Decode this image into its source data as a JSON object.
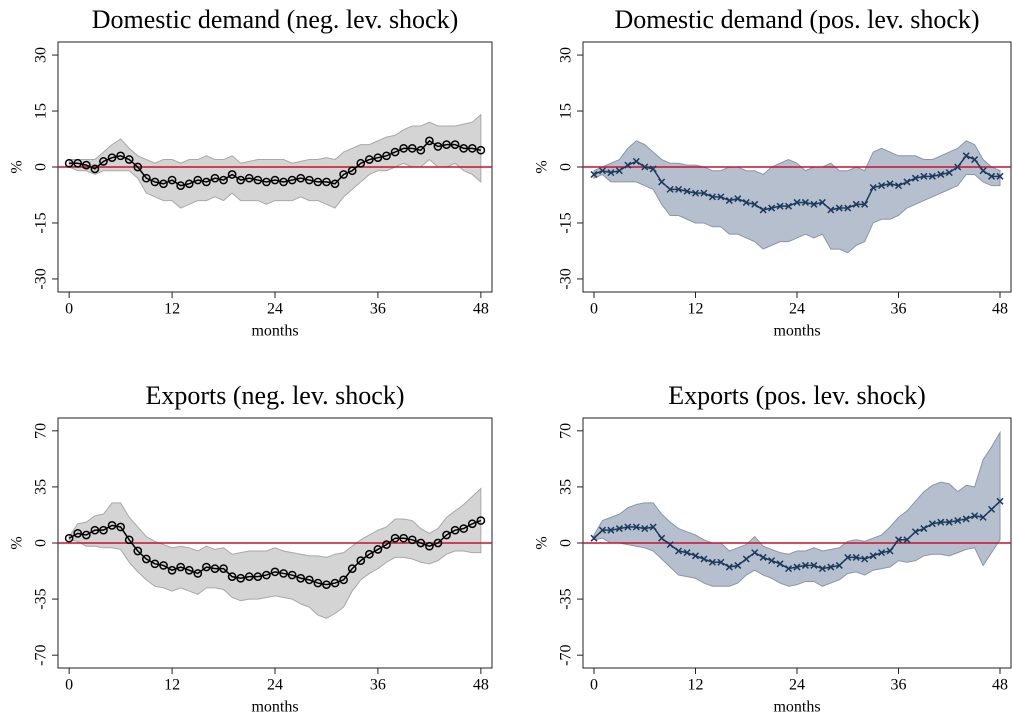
{
  "chart_data": [
    {
      "type": "line",
      "title": "Domestic demand (neg. lev. shock)",
      "xlabel": "months",
      "ylabel": "%",
      "x": [
        0,
        1,
        2,
        3,
        4,
        5,
        6,
        7,
        8,
        9,
        10,
        11,
        12,
        13,
        14,
        15,
        16,
        17,
        18,
        19,
        20,
        21,
        22,
        23,
        24,
        25,
        26,
        27,
        28,
        29,
        30,
        31,
        32,
        33,
        34,
        35,
        36,
        37,
        38,
        39,
        40,
        41,
        42,
        43,
        44,
        45,
        46,
        47,
        48
      ],
      "xlim": [
        -1.3,
        49.3
      ],
      "xticks": [
        0,
        12,
        24,
        36,
        48
      ],
      "ylim": [
        -33.5,
        33.5
      ],
      "yticks": [
        -30,
        -15,
        0,
        15,
        30
      ],
      "hline": 0,
      "hline_color": "#c8102e",
      "marker": "circle",
      "series": [
        {
          "color": "#000000",
          "values": [
            1,
            1,
            0.5,
            -0.5,
            1.5,
            2.5,
            3,
            2,
            0,
            -3,
            -4,
            -4.5,
            -3.5,
            -5,
            -4.5,
            -3.5,
            -4,
            -3,
            -3.5,
            -2,
            -3.5,
            -3,
            -3.5,
            -4,
            -3.5,
            -4,
            -3.5,
            -3,
            -3.5,
            -4,
            -4,
            -4.5,
            -2,
            -1,
            1,
            2,
            2.5,
            3,
            4,
            5,
            5,
            4.5,
            7,
            5.5,
            6,
            6,
            5,
            5,
            4.5
          ]
        }
      ],
      "band": {
        "color": "#d4d4d4",
        "edge": "#a8a8a8",
        "upper": [
          2,
          2,
          2,
          2,
          4,
          6,
          7.5,
          5,
          3,
          2,
          1,
          2,
          2,
          1,
          2,
          2,
          3,
          2,
          2,
          3,
          1,
          1.5,
          2,
          2,
          2,
          2,
          1,
          1.5,
          2,
          2,
          2.5,
          2,
          4,
          5,
          6,
          6,
          7,
          8,
          8.5,
          10,
          11,
          11,
          12,
          11,
          11,
          11,
          11.5,
          12,
          14
        ],
        "lower": [
          0,
          -1,
          -1,
          -2,
          -1,
          -1,
          -1,
          -1,
          -3,
          -7,
          -8,
          -9,
          -9,
          -11,
          -10,
          -9,
          -9,
          -8,
          -9,
          -7,
          -9,
          -9,
          -9,
          -10,
          -9,
          -9,
          -9,
          -8,
          -9,
          -9,
          -10,
          -11,
          -8,
          -6,
          -4,
          -2,
          -1,
          -1,
          0,
          1,
          0,
          0,
          2,
          0,
          0,
          1,
          -1,
          -2,
          -4
        ]
      }
    },
    {
      "type": "line",
      "title": "Domestic demand (pos. lev. shock)",
      "xlabel": "months",
      "ylabel": "%",
      "x": [
        0,
        1,
        2,
        3,
        4,
        5,
        6,
        7,
        8,
        9,
        10,
        11,
        12,
        13,
        14,
        15,
        16,
        17,
        18,
        19,
        20,
        21,
        22,
        23,
        24,
        25,
        26,
        27,
        28,
        29,
        30,
        31,
        32,
        33,
        34,
        35,
        36,
        37,
        38,
        39,
        40,
        41,
        42,
        43,
        44,
        45,
        46,
        47,
        48
      ],
      "xlim": [
        -1.3,
        49.3
      ],
      "xticks": [
        0,
        12,
        24,
        36,
        48
      ],
      "ylim": [
        -33.5,
        33.5
      ],
      "yticks": [
        -30,
        -15,
        0,
        15,
        30
      ],
      "hline": 0,
      "hline_color": "#c8102e",
      "marker": "x",
      "series": [
        {
          "color": "#1b3a5e",
          "values": [
            -2,
            -1,
            -1.5,
            -1,
            0.5,
            1.5,
            0,
            -0.5,
            -4,
            -6,
            -6,
            -6.5,
            -7,
            -7,
            -8,
            -8,
            -9,
            -8.5,
            -9.5,
            -10,
            -11.5,
            -11,
            -10.5,
            -10.5,
            -9.5,
            -9.5,
            -10,
            -9.5,
            -11.5,
            -11,
            -11,
            -10,
            -10,
            -5.5,
            -5,
            -4.5,
            -5,
            -4,
            -3,
            -2.5,
            -2.5,
            -2,
            -1.5,
            0,
            3,
            2,
            -1,
            -2.5,
            -2.5
          ]
        }
      ],
      "band": {
        "color": "#b6bfce",
        "edge": "#8896ab",
        "upper": [
          -1,
          0,
          1,
          2,
          5,
          7,
          6,
          4,
          2,
          1,
          1,
          0.5,
          0.5,
          0,
          -1,
          -1,
          0,
          0,
          -1,
          -1,
          -2,
          0,
          1,
          2,
          1,
          -1,
          0,
          0,
          1,
          -1,
          -1,
          0,
          -1,
          4,
          5,
          4,
          3,
          3,
          3,
          2,
          2,
          3,
          4,
          5,
          7,
          6,
          2,
          0,
          -1
        ],
        "lower": [
          -3,
          -2,
          -4,
          -4,
          -4,
          -4,
          -5,
          -6,
          -10,
          -13,
          -13,
          -14,
          -15,
          -15,
          -16,
          -16,
          -18,
          -18,
          -19,
          -20,
          -22,
          -21,
          -20,
          -20,
          -19,
          -18,
          -19,
          -18,
          -22,
          -22,
          -23,
          -21,
          -20,
          -15,
          -14,
          -14,
          -13,
          -11,
          -10,
          -9,
          -8,
          -7,
          -6,
          -5,
          -2,
          -2,
          -4,
          -5,
          -5
        ]
      }
    },
    {
      "type": "line",
      "title": "Exports (neg. lev. shock)",
      "xlabel": "months",
      "ylabel": "%",
      "x": [
        0,
        1,
        2,
        3,
        4,
        5,
        6,
        7,
        8,
        9,
        10,
        11,
        12,
        13,
        14,
        15,
        16,
        17,
        18,
        19,
        20,
        21,
        22,
        23,
        24,
        25,
        26,
        27,
        28,
        29,
        30,
        31,
        32,
        33,
        34,
        35,
        36,
        37,
        38,
        39,
        40,
        41,
        42,
        43,
        44,
        45,
        46,
        47,
        48
      ],
      "xlim": [
        -1.3,
        49.3
      ],
      "xticks": [
        0,
        12,
        24,
        36,
        48
      ],
      "ylim": [
        -78,
        78
      ],
      "yticks": [
        -70,
        -35,
        0,
        35,
        70
      ],
      "hline": 0,
      "hline_color": "#c8102e",
      "marker": "circle",
      "series": [
        {
          "color": "#000000",
          "values": [
            3,
            6,
            5,
            8,
            8,
            11,
            10,
            2,
            -5,
            -10,
            -13,
            -14,
            -17,
            -15,
            -17,
            -19,
            -15,
            -16,
            -16,
            -21,
            -22,
            -21,
            -21,
            -20,
            -18,
            -19,
            -20,
            -22,
            -23,
            -25,
            -26,
            -25,
            -23,
            -16,
            -11,
            -7,
            -4,
            -1,
            3,
            3,
            2,
            0,
            -2,
            0,
            5,
            8,
            9,
            12,
            14
          ]
        }
      ],
      "band": {
        "color": "#d4d4d4",
        "edge": "#a8a8a8",
        "upper": [
          4,
          12,
          13,
          17,
          18,
          25,
          25,
          16,
          10,
          4,
          1,
          -1,
          -3,
          -2,
          -3,
          -5,
          -2,
          -4,
          -3,
          -7,
          -6,
          -5,
          -5,
          -5,
          -3,
          -5,
          -6,
          -7,
          -8,
          -8,
          -9,
          -7,
          -6,
          -2,
          2,
          5,
          8,
          10,
          15,
          15,
          14,
          9,
          6,
          9,
          16,
          20,
          24,
          29,
          34
        ],
        "lower": [
          2,
          1,
          -2,
          -2,
          -3,
          -3,
          -4,
          -12,
          -18,
          -23,
          -27,
          -28,
          -30,
          -28,
          -30,
          -32,
          -28,
          -28,
          -29,
          -34,
          -36,
          -35,
          -35,
          -34,
          -33,
          -34,
          -35,
          -38,
          -40,
          -45,
          -47,
          -44,
          -40,
          -30,
          -23,
          -19,
          -16,
          -12,
          -9,
          -9,
          -10,
          -12,
          -13,
          -11,
          -7,
          -5,
          -5,
          -6,
          -6
        ]
      }
    },
    {
      "type": "line",
      "title": "Exports (pos. lev. shock)",
      "xlabel": "months",
      "ylabel": "%",
      "x": [
        0,
        1,
        2,
        3,
        4,
        5,
        6,
        7,
        8,
        9,
        10,
        11,
        12,
        13,
        14,
        15,
        16,
        17,
        18,
        19,
        20,
        21,
        22,
        23,
        24,
        25,
        26,
        27,
        28,
        29,
        30,
        31,
        32,
        33,
        34,
        35,
        36,
        37,
        38,
        39,
        40,
        41,
        42,
        43,
        44,
        45,
        46,
        47,
        48
      ],
      "xlim": [
        -1.3,
        49.3
      ],
      "xticks": [
        0,
        12,
        24,
        36,
        48
      ],
      "ylim": [
        -78,
        78
      ],
      "yticks": [
        -70,
        -35,
        0,
        35,
        70
      ],
      "hline": 0,
      "hline_color": "#c8102e",
      "marker": "x",
      "series": [
        {
          "color": "#1b3a5e",
          "values": [
            3,
            8,
            8,
            9,
            10,
            10,
            9,
            10,
            3,
            -1,
            -5,
            -6,
            -8,
            -10,
            -12,
            -12,
            -15,
            -14,
            -10,
            -6,
            -9,
            -11,
            -13,
            -16,
            -15,
            -14,
            -14,
            -16,
            -15,
            -14,
            -9,
            -9,
            -10,
            -8,
            -6,
            -5,
            2,
            2,
            7,
            9,
            12,
            13,
            13,
            14,
            15,
            17,
            16,
            21,
            26
          ]
        }
      ],
      "band": {
        "color": "#b6bfce",
        "edge": "#8896ab",
        "upper": [
          5,
          14,
          16,
          18,
          22,
          24,
          25,
          25,
          18,
          13,
          9,
          7,
          5,
          2,
          0,
          0,
          -5,
          -3,
          -1,
          4,
          -2,
          -4,
          -6,
          -7,
          -5,
          -5,
          -3,
          -5,
          -4,
          -3,
          1,
          2,
          1,
          3,
          5,
          10,
          16,
          20,
          26,
          32,
          36,
          38,
          37,
          32,
          36,
          35,
          52,
          60,
          69
        ],
        "lower": [
          2,
          3,
          0,
          0,
          -1,
          -2,
          -3,
          -5,
          -10,
          -15,
          -20,
          -21,
          -22,
          -25,
          -27,
          -27,
          -27,
          -25,
          -20,
          -17,
          -20,
          -22,
          -25,
          -27,
          -26,
          -24,
          -24,
          -27,
          -25,
          -23,
          -19,
          -18,
          -20,
          -17,
          -16,
          -15,
          -11,
          -12,
          -11,
          -8,
          -7,
          -7,
          -8,
          -6,
          -4,
          -3,
          -14,
          -6,
          2
        ]
      }
    }
  ]
}
